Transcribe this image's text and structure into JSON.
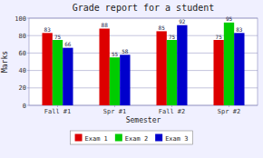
{
  "chart_data": {
    "type": "bar",
    "title": "Grade report for a student",
    "xlabel": "Semester",
    "ylabel": "Marks",
    "categories": [
      "Fall #1",
      "Spr #1",
      "Fall #2",
      "Spr #2"
    ],
    "series": [
      {
        "name": "Exam 1",
        "color": "#dd0000",
        "values": [
          83,
          88,
          85,
          75
        ]
      },
      {
        "name": "Exam 2",
        "color": "#00cc00",
        "values": [
          75,
          55,
          75,
          95
        ]
      },
      {
        "name": "Exam 3",
        "color": "#0000cc",
        "values": [
          66,
          58,
          92,
          83
        ]
      }
    ],
    "ylim": [
      0,
      100
    ],
    "yticks": [
      0,
      20,
      40,
      60,
      80,
      100
    ],
    "grid": true,
    "legend": "bottom",
    "data_labels": true
  }
}
